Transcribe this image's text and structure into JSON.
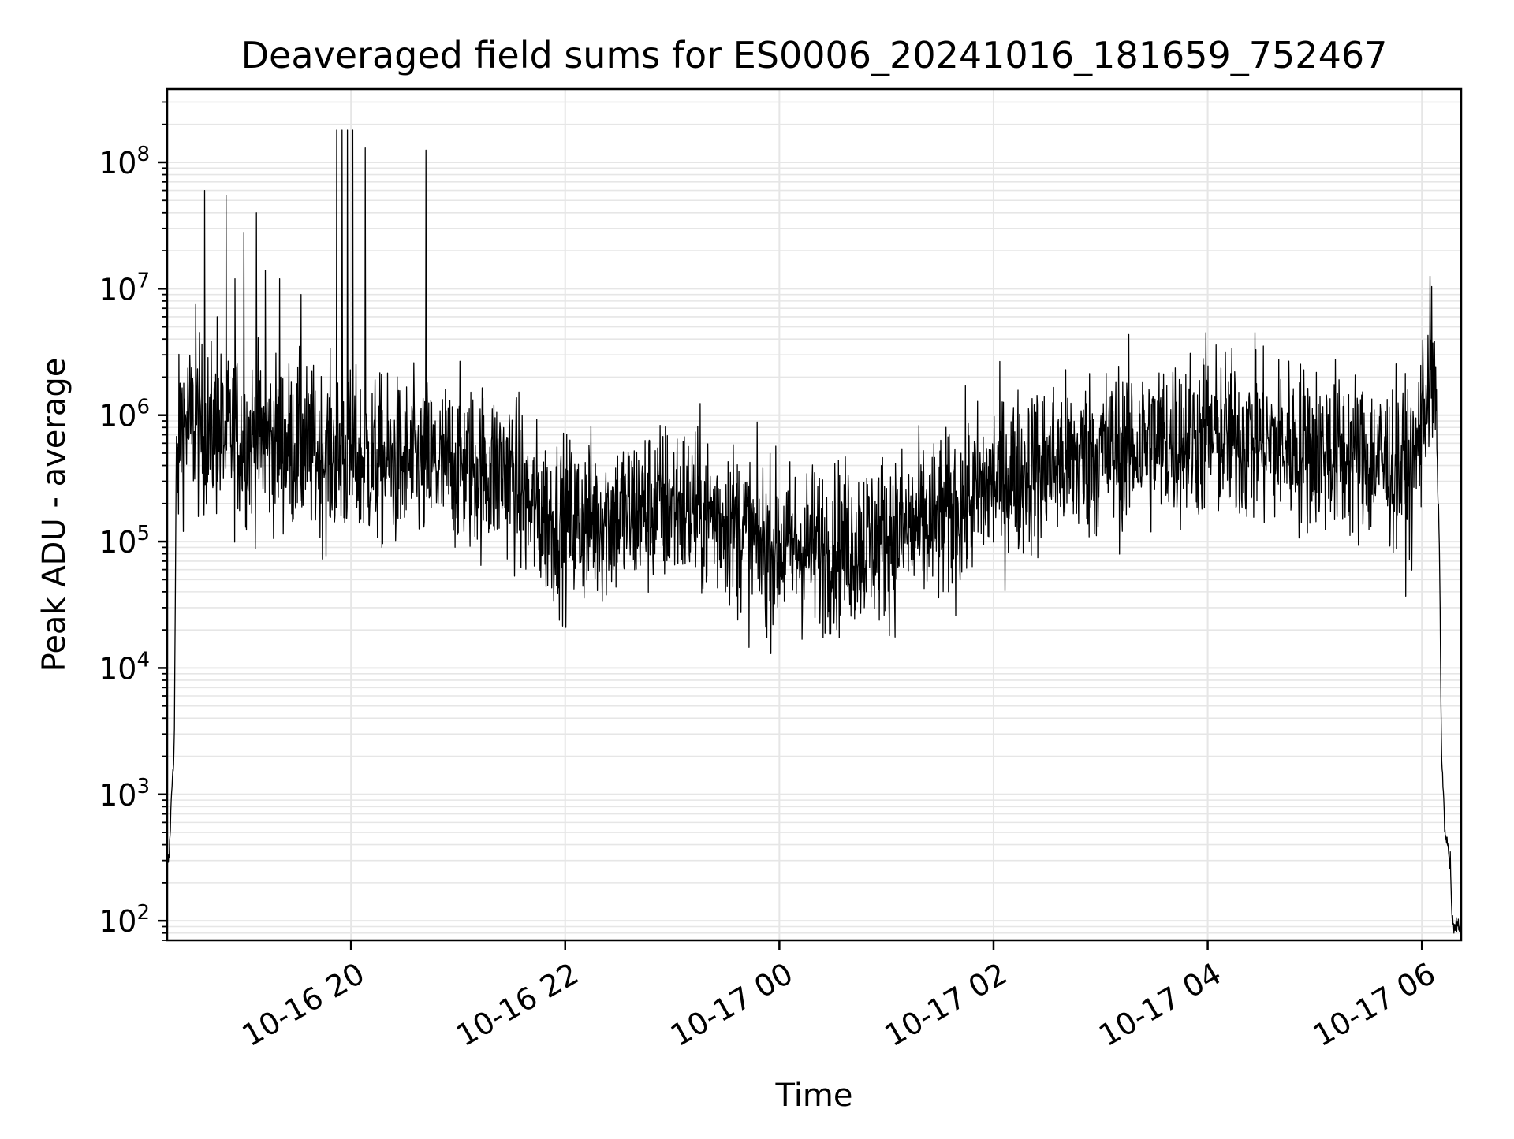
{
  "chart_data": {
    "type": "line",
    "title": "Deaveraged field sums for ES0006_20241016_181659_752467",
    "xlabel": "Time",
    "ylabel": "Peak ADU - average",
    "yscale": "log",
    "ylim": [
      70,
      380000000
    ],
    "xlim": [
      "2024-10-16 18:17",
      "2024-10-17 06:22"
    ],
    "grid": true,
    "line_color": "#000000",
    "grid_color": "#e6e6e6",
    "x_ticks": [
      {
        "label": "10-16 20",
        "time": "2024-10-16 20:00"
      },
      {
        "label": "10-16 22",
        "time": "2024-10-16 22:00"
      },
      {
        "label": "10-17 00",
        "time": "2024-10-17 00:00"
      },
      {
        "label": "10-17 02",
        "time": "2024-10-17 02:00"
      },
      {
        "label": "10-17 04",
        "time": "2024-10-17 04:00"
      },
      {
        "label": "10-17 06",
        "time": "2024-10-17 06:00"
      }
    ],
    "y_ticks": [
      {
        "base": "10",
        "exp": "2",
        "value": 100
      },
      {
        "base": "10",
        "exp": "3",
        "value": 1000
      },
      {
        "base": "10",
        "exp": "4",
        "value": 10000
      },
      {
        "base": "10",
        "exp": "5",
        "value": 100000
      },
      {
        "base": "10",
        "exp": "6",
        "value": 1000000
      },
      {
        "base": "10",
        "exp": "7",
        "value": 10000000
      },
      {
        "base": "10",
        "exp": "8",
        "value": 100000000
      }
    ],
    "series": [
      {
        "values_per_time_mean": [
          [
            "2024-10-16 18:17",
            300
          ],
          [
            "2024-10-16 18:18",
            300
          ],
          [
            "2024-10-16 18:20",
            1500
          ],
          [
            "2024-10-16 18:21",
            2300
          ],
          [
            "2024-10-16 18:22",
            300000
          ],
          [
            "2024-10-16 18:25",
            900000
          ],
          [
            "2024-10-16 18:40",
            750000
          ],
          [
            "2024-10-16 19:00",
            650000
          ],
          [
            "2024-10-16 19:20",
            600000
          ],
          [
            "2024-10-16 19:40",
            500000
          ],
          [
            "2024-10-16 20:00",
            450000
          ],
          [
            "2024-10-16 20:30",
            400000
          ],
          [
            "2024-10-16 21:00",
            400000
          ],
          [
            "2024-10-16 21:30",
            350000
          ],
          [
            "2024-10-16 21:40",
            180000
          ],
          [
            "2024-10-16 22:00",
            140000
          ],
          [
            "2024-10-16 22:30",
            160000
          ],
          [
            "2024-10-16 23:00",
            200000
          ],
          [
            "2024-10-16 23:30",
            150000
          ],
          [
            "2024-10-16 23:50",
            90000
          ],
          [
            "2024-10-17 00:30",
            90000
          ],
          [
            "2024-10-17 01:00",
            110000
          ],
          [
            "2024-10-17 01:30",
            140000
          ],
          [
            "2024-10-17 02:00",
            300000
          ],
          [
            "2024-10-17 02:30",
            400000
          ],
          [
            "2024-10-17 03:00",
            500000
          ],
          [
            "2024-10-17 03:30",
            600000
          ],
          [
            "2024-10-17 04:00",
            700000
          ],
          [
            "2024-10-17 04:30",
            600000
          ],
          [
            "2024-10-17 05:00",
            550000
          ],
          [
            "2024-10-17 05:30",
            450000
          ],
          [
            "2024-10-17 05:55",
            350000
          ],
          [
            "2024-10-17 06:05",
            2500000
          ],
          [
            "2024-10-17 06:08",
            1000000
          ],
          [
            "2024-10-17 06:10",
            60000
          ],
          [
            "2024-10-17 06:11",
            2000
          ],
          [
            "2024-10-17 06:13",
            500
          ],
          [
            "2024-10-17 06:16",
            280
          ],
          [
            "2024-10-17 06:17",
            90
          ]
        ],
        "spikes": [
          [
            "2024-10-16 18:38",
            60000000
          ],
          [
            "2024-10-16 18:50",
            55000000
          ],
          [
            "2024-10-16 18:45",
            6000000
          ],
          [
            "2024-10-16 19:00",
            28000000
          ],
          [
            "2024-10-16 19:07",
            40000000
          ],
          [
            "2024-10-16 18:55",
            12000000
          ],
          [
            "2024-10-16 19:12",
            14000000
          ],
          [
            "2024-10-16 19:20",
            12000000
          ],
          [
            "2024-10-16 19:32",
            9000000
          ],
          [
            "2024-10-16 19:52",
            180000000
          ],
          [
            "2024-10-16 19:55",
            180000000
          ],
          [
            "2024-10-16 19:58",
            180000000
          ],
          [
            "2024-10-16 20:01",
            180000000
          ],
          [
            "2024-10-16 20:08",
            130000000
          ],
          [
            "2024-10-16 20:42",
            125000000
          ],
          [
            "2024-10-16 18:33",
            7500000
          ],
          [
            "2024-10-17 03:59",
            4500000
          ],
          [
            "2024-10-17 04:27",
            3300000
          ]
        ]
      }
    ]
  }
}
